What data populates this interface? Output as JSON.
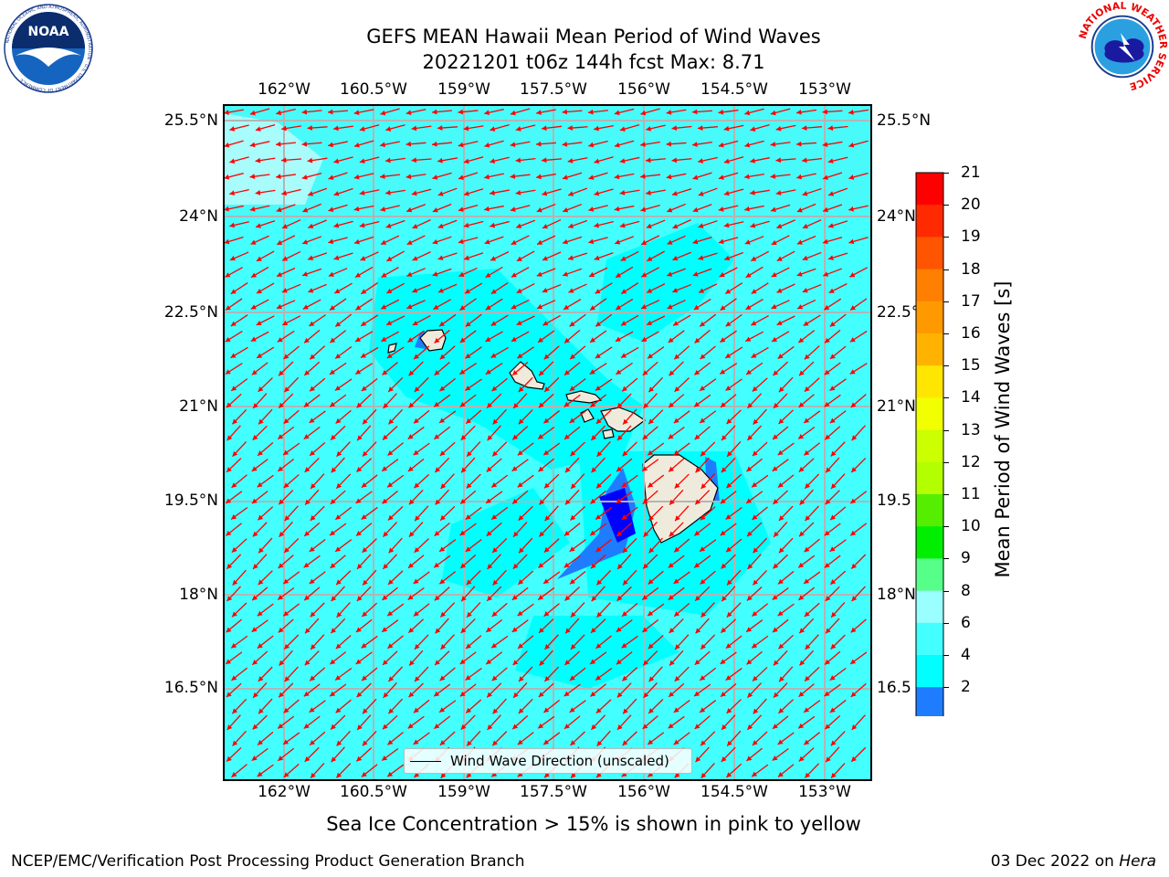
{
  "title": {
    "line1": "GEFS MEAN Hawaii Mean Period of Wind Waves",
    "line2": "20221201 t06z 144h fcst   Max: 8.71"
  },
  "map": {
    "lon_labels": [
      "162°W",
      "160.5°W",
      "159°W",
      "157.5°W",
      "156°W",
      "154.5°W",
      "153°W"
    ],
    "lat_labels_left": [
      "25.5°N",
      "24°N",
      "22.5°N",
      "21°N",
      "19.5°N",
      "18°N",
      "16.5°N"
    ],
    "lat_labels_right": [
      "25.5°N",
      "24°N",
      "22.5°",
      "21°N",
      "19.5",
      "18°N",
      "16.5"
    ],
    "legend_label": "Wind Wave Direction (unscaled)",
    "arrow_color": "#ff0000",
    "ocean_color": "#44ffff",
    "land_color": "#efebdc"
  },
  "colorbar": {
    "label": "Mean Period of Wind Waves [s]",
    "ticks": [
      "21",
      "20",
      "19",
      "18",
      "17",
      "16",
      "15",
      "14",
      "13",
      "12",
      "11",
      "10",
      "9",
      "8",
      "6",
      "4",
      "2"
    ],
    "colors": [
      "#ff0000",
      "#ff2a00",
      "#ff5500",
      "#ff7f00",
      "#ff9900",
      "#ffb300",
      "#ffe600",
      "#f2ff00",
      "#ccff00",
      "#b3ff00",
      "#55ee00",
      "#00ee00",
      "#55ff88",
      "#99ffff",
      "#44ffff",
      "#00ffff",
      "#1e7dff"
    ],
    "under_color": "#0000ff"
  },
  "ice_note": "Sea Ice Concentration > 15% is shown in pink to yellow",
  "footer": {
    "left": "NCEP/EMC/Verification Post Processing Product Generation Branch",
    "date": "03 Dec 2022 on ",
    "host": "Hera"
  },
  "logos": {
    "noaa": "NOAA",
    "noaa_ring": "NATIONAL OCEANIC AND ATMOSPHERIC ADMINISTRATION · U.S. DEPARTMENT OF COMMERCE",
    "nws_ring": "NATIONAL WEATHER SERVICE"
  }
}
